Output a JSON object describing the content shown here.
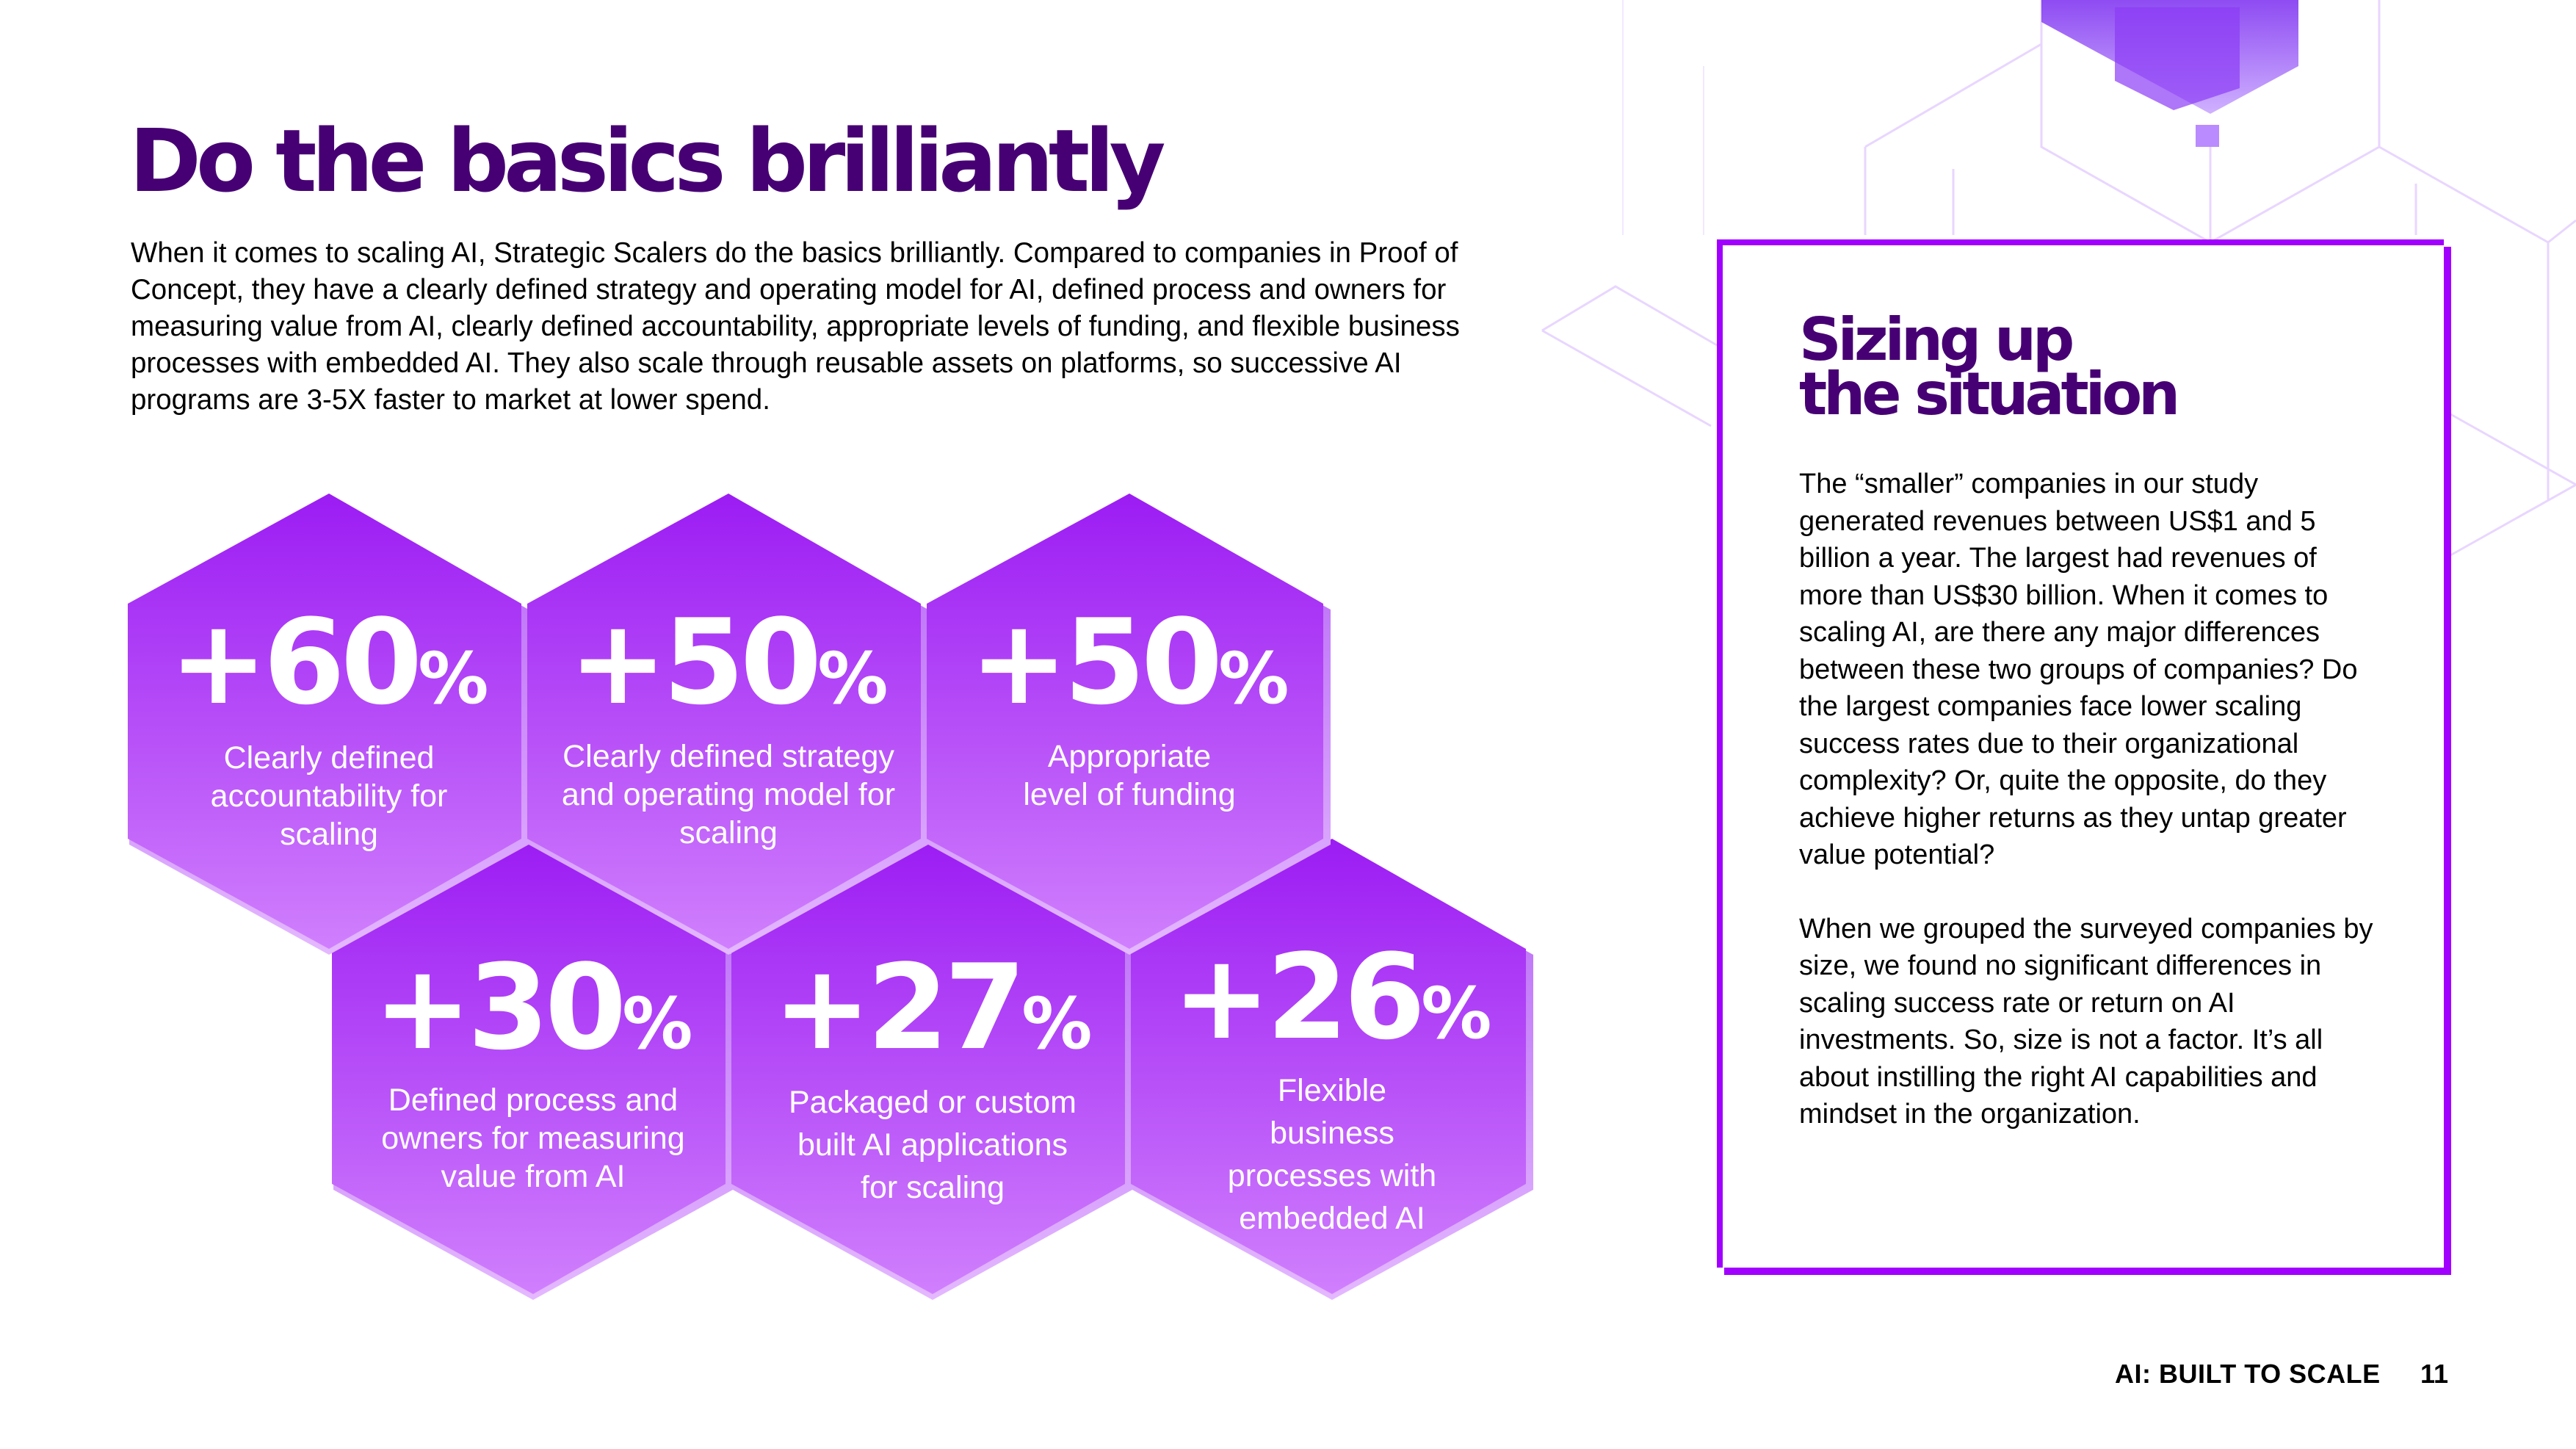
{
  "page": {
    "title": "Do the basics brilliantly",
    "intro": "When it comes to scaling AI, Strategic Scalers do the basics brilliantly. Compared to companies in Proof of Concept, they have a clearly defined strategy and operating model for AI, defined process and owners for measuring value from AI, clearly defined accountability, appropriate levels of funding, and flexible business processes with embedded AI. They also scale through reusable assets on platforms, so successive AI programs are 3-5X faster to market at lower spend."
  },
  "stats": [
    {
      "value": "+60",
      "unit": "%",
      "label": "Clearly defined accountability for scaling"
    },
    {
      "value": "+50",
      "unit": "%",
      "label": "Clearly defined strategy and operating model for scaling"
    },
    {
      "value": "+50",
      "unit": "%",
      "label": "Appropriate level of funding"
    },
    {
      "value": "+30",
      "unit": "%",
      "label": "Defined process and owners for measuring value from AI"
    },
    {
      "value": "+27",
      "unit": "%",
      "label": "Packaged or custom built AI applications for scaling"
    },
    {
      "value": "+26",
      "unit": "%",
      "label": "Flexible business processes with embedded AI"
    }
  ],
  "sidebar": {
    "title_line1": "Sizing up",
    "title_line2": "the situation",
    "paragraph1": "The “smaller” companies in our study generated revenues between US$1 and 5 billion a year. The largest had revenues of more than US$30 billion. When it comes to scaling AI, are there any major differences between these two groups of companies? Do the largest companies face lower scaling success rates due to their organizational complexity? Or, quite the opposite, do they achieve higher returns as they untap greater value potential?",
    "paragraph2": "When we grouped the surveyed companies by size, we found no significant differences in scaling success rate or return on AI investments. So, size is not a factor. It’s all about instilling the right AI capabilities and mindset in the organization."
  },
  "footer": {
    "title": "AI: BUILT TO SCALE",
    "page_number": "11"
  },
  "colors": {
    "brand_dark_purple": "#460073",
    "brand_purple": "#a100ff",
    "hex_top": "#9c1cf3",
    "hex_bottom": "#d07ffd"
  }
}
